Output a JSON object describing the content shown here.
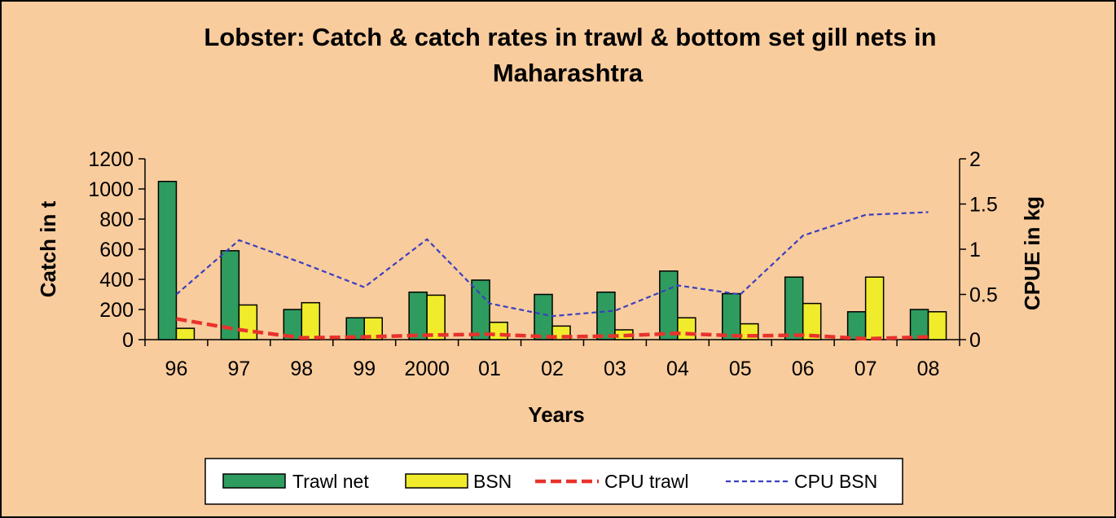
{
  "chart_data": {
    "type": "bar",
    "title": [
      "Lobster: Catch & catch rates in trawl & bottom set gill nets in",
      "Maharashtra"
    ],
    "xlabel": "Years",
    "ylabel_left": "Catch in t",
    "ylabel_right": "CPUE in kg",
    "categories": [
      "96",
      "97",
      "98",
      "99",
      "2000",
      "01",
      "02",
      "03",
      "04",
      "05",
      "06",
      "07",
      "08"
    ],
    "ylim_left": [
      0,
      1200
    ],
    "yticks_left": [
      "0",
      "200",
      "400",
      "600",
      "800",
      "1000",
      "1200"
    ],
    "ylim_right": [
      0,
      2
    ],
    "yticks_right": [
      "0",
      "0.5",
      "1",
      "1.5",
      "2"
    ],
    "series": [
      {
        "name": "Trawl net",
        "kind": "bar",
        "axis": "left",
        "color": "#2e9c5f",
        "values": [
          1050,
          590,
          200,
          145,
          315,
          395,
          300,
          315,
          455,
          305,
          415,
          185,
          200
        ]
      },
      {
        "name": "BSN",
        "kind": "bar",
        "axis": "left",
        "color": "#f0ec2c",
        "values": [
          75,
          230,
          245,
          145,
          295,
          115,
          90,
          65,
          145,
          105,
          240,
          415,
          185
        ]
      },
      {
        "name": "CPU trawl",
        "kind": "line",
        "axis": "right",
        "color": "#e8322c",
        "style": "dashed-thick",
        "values": [
          0.23,
          0.11,
          0.02,
          0.03,
          0.05,
          0.06,
          0.03,
          0.04,
          0.07,
          0.04,
          0.05,
          0.01,
          0.03
        ]
      },
      {
        "name": "CPU BSN",
        "kind": "line",
        "axis": "right",
        "color": "#3a3fbf",
        "style": "dashed-thin",
        "values": [
          0.5,
          1.1,
          0.85,
          0.58,
          1.11,
          0.4,
          0.26,
          0.32,
          0.6,
          0.5,
          1.15,
          1.38,
          1.41
        ]
      }
    ],
    "legend_position": "bottom",
    "grid": false
  }
}
